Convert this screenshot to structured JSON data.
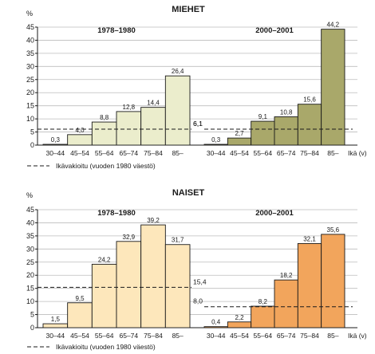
{
  "chart_data": [
    {
      "type": "bar",
      "title": "MIEHET",
      "yunit": "%",
      "ylim": [
        0,
        45
      ],
      "yticks": [
        0,
        5,
        10,
        15,
        20,
        25,
        30,
        35,
        40,
        45
      ],
      "grid": true,
      "categories": [
        "30–44",
        "45–54",
        "55–64",
        "65–74",
        "75–84",
        "85–"
      ],
      "xunit": "Ikä (v)",
      "panels": [
        {
          "period": "1978–1980",
          "values": [
            0.3,
            4.0,
            8.8,
            12.8,
            14.4,
            26.4
          ],
          "value_labels": [
            "0,3",
            "4,0",
            "8,8",
            "12,8",
            "14,4",
            "26,4"
          ],
          "reference": 6.1,
          "reference_label": "6,1",
          "color": "#ebedcc"
        },
        {
          "period": "2000–2001",
          "values": [
            0.3,
            2.7,
            9.1,
            10.8,
            15.6,
            44.2
          ],
          "value_labels": [
            "0,3",
            "2,7",
            "9,1",
            "10,8",
            "15,6",
            "44,2"
          ],
          "reference": 6.1,
          "reference_label": "6,1",
          "color": "#a9a86a"
        }
      ],
      "legend": "Ikävakioitu (vuoden 1980 väestö)"
    },
    {
      "type": "bar",
      "title": "NAISET",
      "yunit": "%",
      "ylim": [
        0,
        45
      ],
      "yticks": [
        0,
        5,
        10,
        15,
        20,
        25,
        30,
        35,
        40,
        45
      ],
      "grid": true,
      "categories": [
        "30–44",
        "45–54",
        "55–64",
        "65–74",
        "75–84",
        "85–"
      ],
      "xunit": "Ikä (v)",
      "panels": [
        {
          "period": "1978–1980",
          "values": [
            1.5,
            9.5,
            24.2,
            32.9,
            39.2,
            31.7
          ],
          "value_labels": [
            "1,5",
            "9,5",
            "24,2",
            "32,9",
            "39,2",
            "31,7"
          ],
          "reference": 15.4,
          "reference_label": "15,4",
          "color": "#fde7bb"
        },
        {
          "period": "2000–2001",
          "values": [
            0.4,
            2.2,
            8.2,
            18.2,
            32.1,
            35.6
          ],
          "value_labels": [
            "0,4",
            "2,2",
            "8,2",
            "18,2",
            "32,1",
            "35,6"
          ],
          "reference": 8.0,
          "reference_label": "8,0",
          "color": "#f2a55c"
        }
      ],
      "legend": "Ikävakioitu (vuoden 1980 väestö)"
    }
  ]
}
